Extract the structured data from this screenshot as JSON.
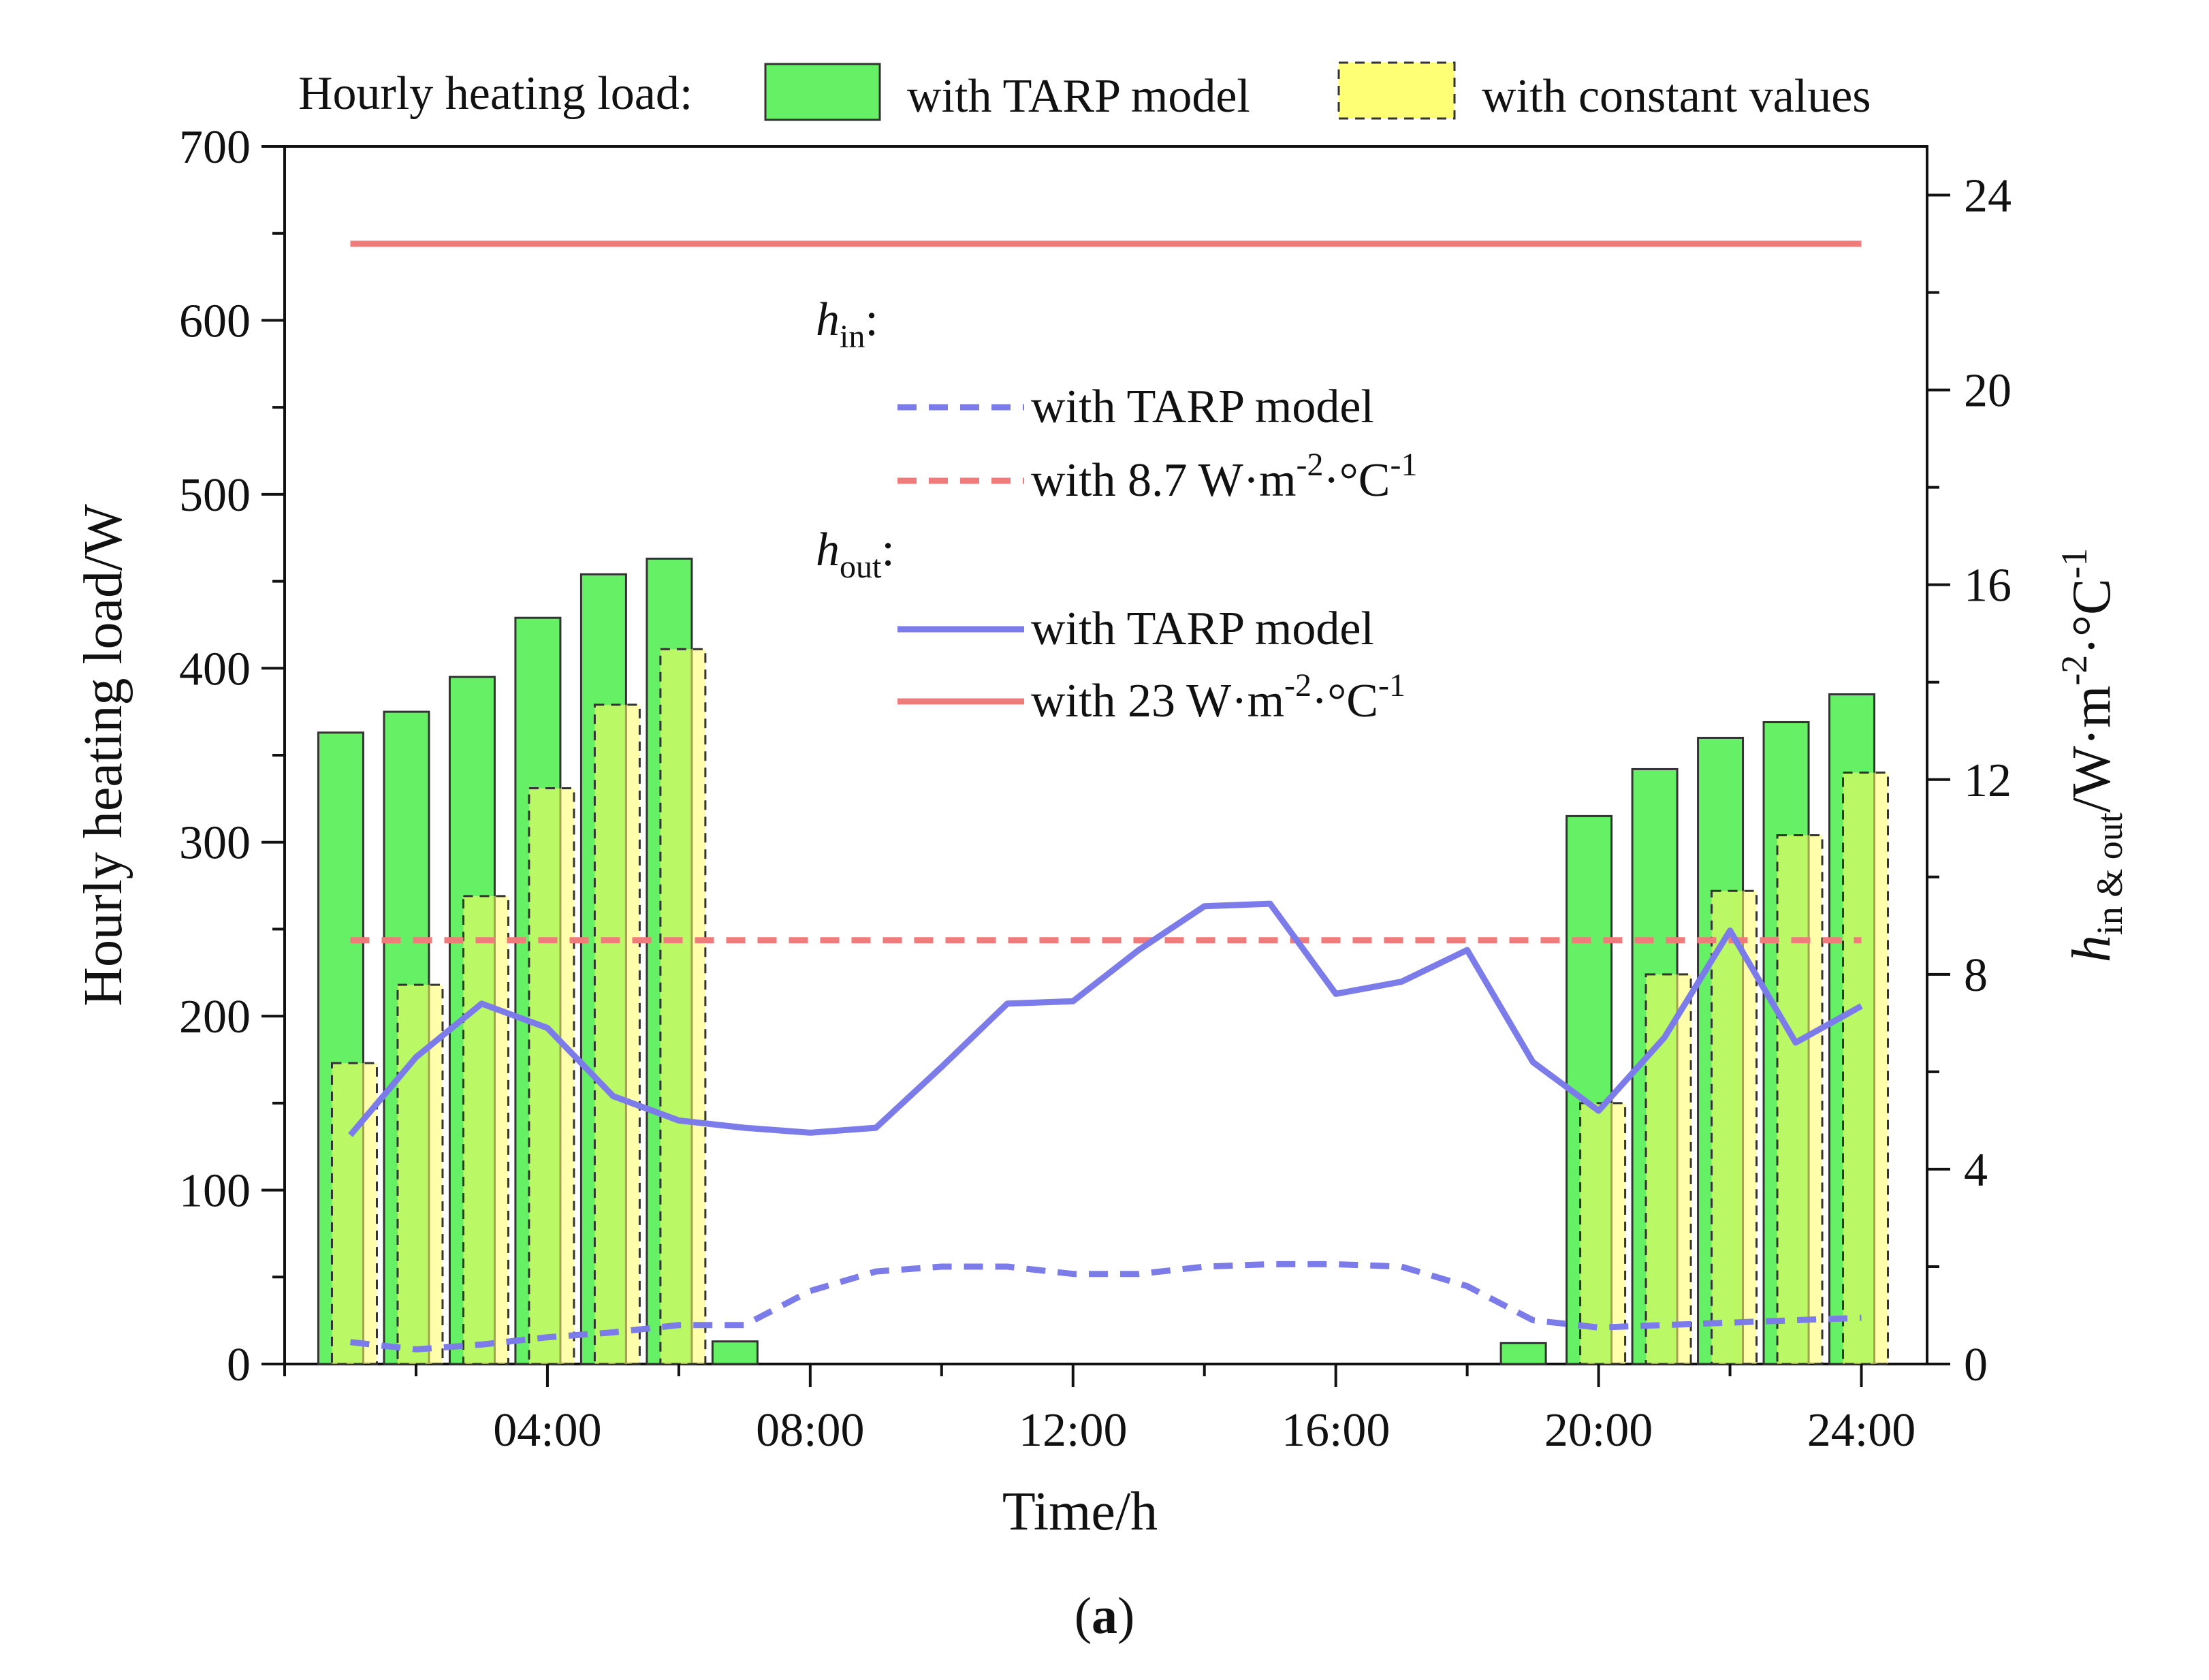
{
  "chart_data": {
    "type": "bar",
    "xlabel": "Time/h",
    "ylabel_left": "Hourly heating load/W",
    "ylabel_right": "h_in & out/W·m-2·°C-1",
    "ylim_left": [
      0,
      700
    ],
    "ylim_right": [
      0,
      25
    ],
    "yticks_left": [
      "0",
      "100",
      "200",
      "300",
      "400",
      "500",
      "600",
      "700"
    ],
    "yticks_right": [
      "0",
      "4",
      "8",
      "12",
      "16",
      "20",
      "24"
    ],
    "xlim": [
      0,
      25
    ],
    "xticks": [
      {
        "x": 4,
        "label": "04:00"
      },
      {
        "x": 8,
        "label": "08:00"
      },
      {
        "x": 12,
        "label": "12:00"
      },
      {
        "x": 16,
        "label": "16:00"
      },
      {
        "x": 20,
        "label": "20:00"
      },
      {
        "x": 24,
        "label": "24:00"
      }
    ],
    "hours": [
      1,
      2,
      3,
      4,
      5,
      6,
      7,
      8,
      9,
      10,
      11,
      12,
      13,
      14,
      15,
      16,
      17,
      18,
      19,
      20,
      21,
      22,
      23,
      24
    ],
    "bar_series": [
      {
        "name": "with TARP model",
        "color": "#55ee55",
        "values": [
          363,
          375,
          395,
          429,
          454,
          463,
          13,
          0,
          0,
          0,
          0,
          0,
          0,
          0,
          0,
          0,
          0,
          0,
          12,
          315,
          342,
          360,
          369,
          385
        ]
      },
      {
        "name": "with constant values",
        "color": "#ffff66",
        "values": [
          173,
          218,
          269,
          331,
          379,
          411,
          0,
          0,
          0,
          0,
          0,
          0,
          0,
          0,
          0,
          0,
          0,
          0,
          0,
          150,
          224,
          272,
          304,
          340
        ]
      }
    ],
    "line_series": [
      {
        "name": "h_in with TARP model",
        "group": "h_in",
        "color": "#7b7bea",
        "dash": true,
        "values": [
          0.45,
          0.3,
          0.4,
          0.55,
          0.65,
          0.8,
          0.8,
          1.5,
          1.9,
          2.0,
          2.0,
          1.85,
          1.85,
          2.0,
          2.05,
          2.05,
          2.0,
          1.6,
          0.9,
          0.75,
          0.8,
          0.85,
          0.9,
          0.95
        ]
      },
      {
        "name": "h_in with 8.7 W·m-2·°C-1",
        "group": "h_in",
        "color": "#ef7b7b",
        "dash": true,
        "constant": 8.7
      },
      {
        "name": "h_out with TARP model",
        "group": "h_out",
        "color": "#7b7bea",
        "dash": false,
        "values": [
          4.7,
          6.3,
          7.4,
          6.9,
          5.5,
          5.0,
          4.85,
          4.75,
          4.85,
          6.1,
          7.4,
          7.45,
          8.5,
          9.4,
          9.45,
          7.6,
          7.85,
          8.5,
          6.2,
          5.2,
          6.7,
          8.9,
          6.6,
          7.35
        ]
      },
      {
        "name": "h_out with 23 W·m-2·°C-1",
        "group": "h_out",
        "color": "#ef7b7b",
        "dash": false,
        "constant": 23
      }
    ]
  },
  "legend_top": {
    "title": "Hourly heating load:",
    "items": [
      "with TARP model",
      "with constant values"
    ]
  },
  "legend_inner": {
    "h_in_label": "h",
    "h_in_sub": "in",
    "h_in_items": [
      "with TARP model",
      "with 8.7 W·m",
      "-2",
      "·°C",
      "-1"
    ],
    "h_out_label": "h",
    "h_out_sub": "out",
    "h_out_items": [
      "with TARP model",
      "with 23 W·m",
      "-2",
      "·°C",
      "-1"
    ]
  },
  "right_axis_label": {
    "h": "h",
    "sub": "in & out",
    "unit": "/W·m",
    "sup1": "-2",
    "mid": "·°C",
    "sup2": "-1"
  },
  "panel_label": {
    "open": "(",
    "letter": "a",
    "close": ")"
  }
}
